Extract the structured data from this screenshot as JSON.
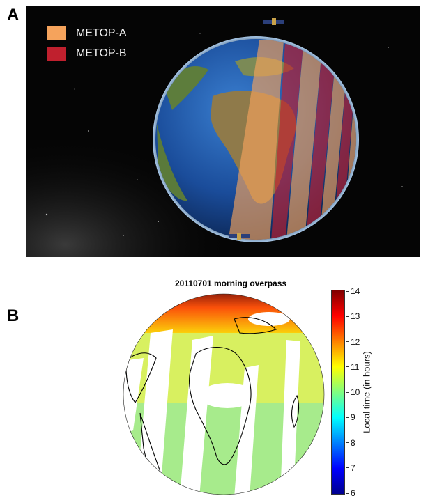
{
  "panel_a": {
    "letter": "A",
    "legend": [
      {
        "label": "METOP-A",
        "color": "#f5a35c"
      },
      {
        "label": "METOP-B",
        "color": "#c0202e"
      }
    ]
  },
  "panel_b": {
    "letter": "B",
    "title": "20110701 morning overpass",
    "colorbar": {
      "label": "Local time (in hours)",
      "min": 6,
      "max": 14,
      "ticks": [
        "14",
        "13",
        "12",
        "11",
        "10",
        "9",
        "8",
        "7",
        "6"
      ],
      "colormap": [
        "#00008f",
        "#0000ff",
        "#0080ff",
        "#00ffff",
        "#80ff80",
        "#ffff00",
        "#ff8000",
        "#ff0000",
        "#800000"
      ]
    }
  }
}
